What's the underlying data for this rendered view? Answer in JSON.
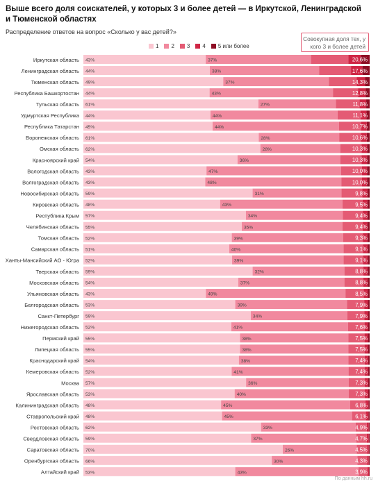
{
  "title": "Выше всего доля соискателей, у которых 3 и более детей — в Иркутской, Ленинградской и Тюменской областях",
  "subtitle": "Распределение ответов на вопрос «Сколько у вас детей?»",
  "callout": "Совокупная доля тех, у кого 3 и более детей",
  "footer": "По данным hh.ru",
  "colors": {
    "c1": "#fac6d0",
    "c2": "#f1899e",
    "c3": "#e45b74",
    "c4": "#cf2645",
    "c5": "#8e0d24"
  },
  "chart_data": {
    "type": "bar",
    "stacked": true,
    "orientation": "horizontal",
    "xlim": [
      0,
      100
    ],
    "legend": [
      "1",
      "2",
      "3",
      "4",
      "5 или более"
    ],
    "legend_position": "top",
    "categories": [
      "Иркутская область",
      "Ленинградская область",
      "Тюменская область",
      "Республика Башкортостан",
      "Тульская область",
      "Удмуртская Республика",
      "Республика Татарстан",
      "Воронежская область",
      "Омская область",
      "Красноярский край",
      "Вологодская область",
      "Волгоградская область",
      "Новосибирская область",
      "Кировская область",
      "Республика Крым",
      "Челябинская область",
      "Томская область",
      "Самарская область",
      "Ханты-Мансийский АО - Югра",
      "Тверская область",
      "Московская область",
      "Ульяновская область",
      "Белгородская область",
      "Санкт-Петербург",
      "Нижегородская область",
      "Пермский край",
      "Липецкая область",
      "Краснодарский край",
      "Кемеровская область",
      "Москва",
      "Ярославская область",
      "Калининградская область",
      "Ставропольский край",
      "Ростовская область",
      "Свердловская область",
      "Саратовская область",
      "Оренбургская область",
      "Алтайский край"
    ],
    "share_one": [
      43,
      44,
      49,
      44,
      61,
      44,
      45,
      61,
      62,
      54,
      43,
      43,
      59,
      48,
      57,
      55,
      52,
      51,
      52,
      59,
      54,
      43,
      53,
      59,
      52,
      55,
      55,
      54,
      52,
      57,
      53,
      48,
      48,
      62,
      59,
      70,
      66,
      53
    ],
    "share_two": [
      37,
      38,
      37,
      43,
      27,
      44,
      44,
      28,
      28,
      36,
      47,
      48,
      31,
      43,
      34,
      35,
      39,
      40,
      39,
      32,
      37,
      49,
      39,
      34,
      41,
      38,
      38,
      38,
      41,
      36,
      40,
      45,
      45,
      33,
      37,
      26,
      30,
      43
    ],
    "share_three_plus": [
      20.6,
      17.6,
      14.3,
      12.8,
      11.8,
      11.1,
      10.7,
      10.6,
      10.3,
      10.3,
      10.0,
      10.0,
      9.8,
      9.5,
      9.4,
      9.4,
      9.3,
      9.1,
      9.1,
      8.8,
      8.8,
      8.5,
      7.9,
      7.9,
      7.6,
      7.5,
      7.5,
      7.4,
      7.4,
      7.3,
      7.3,
      6.8,
      6.1,
      4.9,
      4.7,
      4.5,
      4.3,
      3.9
    ],
    "share_three_plus_labels": [
      "20,6%",
      "17,6%",
      "14,3%",
      "12,8%",
      "11,8%",
      "11,1%",
      "10,7%",
      "10,6%",
      "10,3%",
      "10,3%",
      "10,0%",
      "10,0%",
      "9,8%",
      "9,5%",
      "9,4%",
      "9,4%",
      "9,3%",
      "9,1%",
      "9,1%",
      "8,8%",
      "8,8%",
      "8,5%",
      "7,9%",
      "7,9%",
      "7,6%",
      "7,5%",
      "7,5%",
      "7,4%",
      "7,4%",
      "7,3%",
      "7,3%",
      "6,8%",
      "6,1%",
      "4,9%",
      "4,7%",
      "4,5%",
      "4,3%",
      "3,9%"
    ],
    "share_four_and_more": [
      7.5,
      6.5,
      4.5,
      4.0,
      3.5,
      3.2,
      3.0,
      3.0,
      2.8,
      2.8,
      2.7,
      2.7,
      2.6,
      2.5,
      2.4,
      2.4,
      2.4,
      2.3,
      2.3,
      2.2,
      2.2,
      2.1,
      1.9,
      1.9,
      1.8,
      1.8,
      1.8,
      1.7,
      1.7,
      1.7,
      1.7,
      1.5,
      1.3,
      1.0,
      1.0,
      0.9,
      0.9,
      0.8
    ],
    "share_five_plus": [
      3.0,
      2.5,
      1.6,
      1.4,
      1.2,
      1.1,
      1.0,
      1.0,
      0.9,
      0.9,
      0.9,
      0.9,
      0.8,
      0.8,
      0.8,
      0.8,
      0.8,
      0.7,
      0.7,
      0.7,
      0.7,
      0.7,
      0.6,
      0.6,
      0.6,
      0.6,
      0.6,
      0.5,
      0.5,
      0.5,
      0.5,
      0.4,
      0.4,
      0.3,
      0.3,
      0.3,
      0.3,
      0.2
    ]
  }
}
